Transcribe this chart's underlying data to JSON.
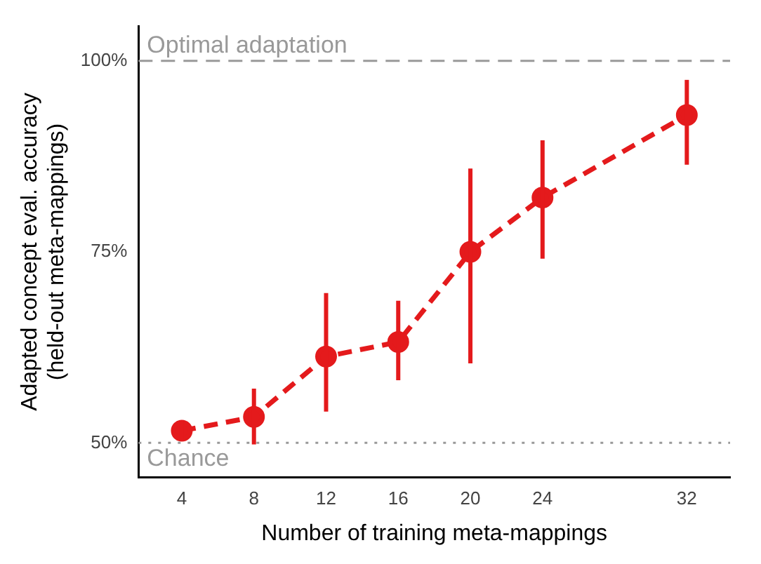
{
  "chart_data": {
    "type": "line",
    "xlabel": "Number of training meta-mappings",
    "ylabel": "Adapted concept eval. accuracy\n(held-out meta-mappings)",
    "x": [
      4,
      8,
      12,
      16,
      20,
      24,
      32
    ],
    "series": [
      {
        "color": "#e41a1c",
        "values": [
          51.6,
          53.4,
          61.3,
          63.2,
          75,
          82.1,
          92.9
        ],
        "errors": [
          [
            50.4,
            52.9
          ],
          [
            49.8,
            57.1
          ],
          [
            54.1,
            69.6
          ],
          [
            58.2,
            68.6
          ],
          [
            60.4,
            85.9
          ],
          [
            74.1,
            89.6
          ],
          [
            86.4,
            97.5
          ]
        ]
      }
    ],
    "xlim": [
      1.6,
      34.4
    ],
    "xticks": [
      4,
      8,
      12,
      16,
      20,
      24,
      32
    ],
    "ylim": [
      45.5,
      104.5
    ],
    "yticks": [
      {
        "value": 50,
        "label": "50%"
      },
      {
        "value": 75,
        "label": "75%"
      },
      {
        "value": 100,
        "label": "100%"
      }
    ],
    "ref_lines": [
      {
        "axis": "y",
        "value": 100,
        "label": "Optimal adaptation",
        "color": "#999999",
        "line_style": "dashed"
      },
      {
        "axis": "y",
        "value": 50,
        "label": "Chance",
        "color": "#999999",
        "line_style": "dotted"
      }
    ],
    "grid": false,
    "legend": false,
    "marker": "circle",
    "line_style": "dashed"
  }
}
